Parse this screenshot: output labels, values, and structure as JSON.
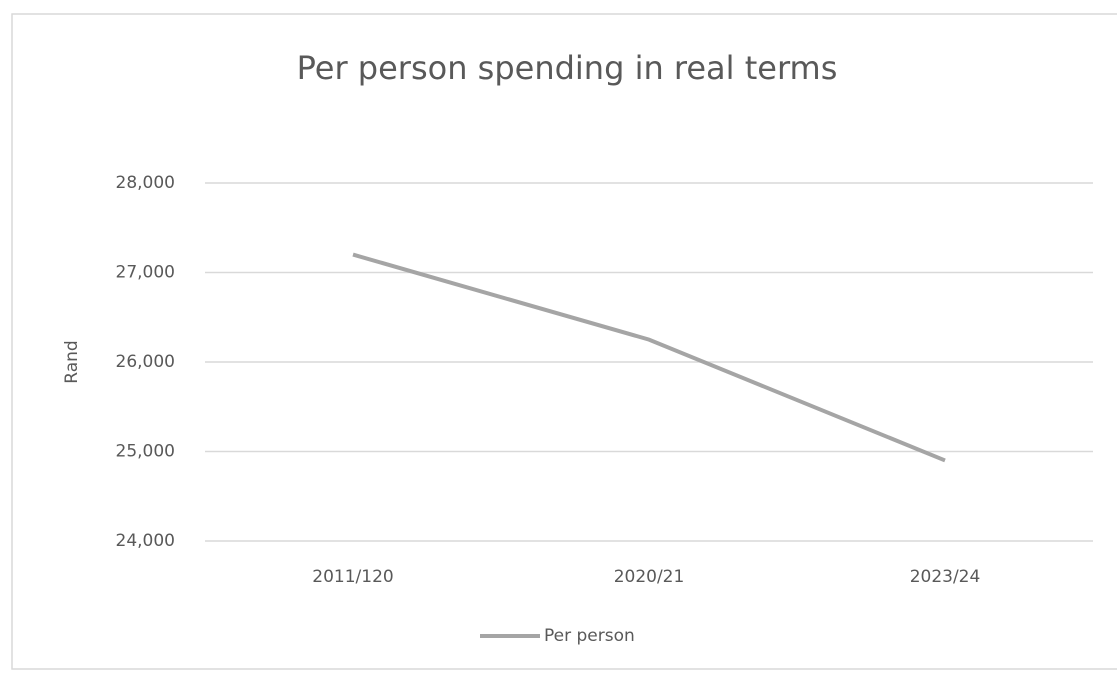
{
  "chart_data": {
    "type": "line",
    "title": "Per person spending in real terms",
    "y_label": "Rand",
    "categories": [
      "2011/120",
      "2020/21",
      "2023/24"
    ],
    "series": [
      {
        "name": "Per person",
        "color": "#a5a5a5",
        "values": [
          27200,
          26250,
          24900
        ]
      }
    ],
    "ylim": [
      24000,
      28000
    ],
    "yticks": [
      {
        "value": 24000,
        "label": "24,000"
      },
      {
        "value": 25000,
        "label": "25,000"
      },
      {
        "value": 26000,
        "label": "26,000"
      },
      {
        "value": 27000,
        "label": "27,000"
      },
      {
        "value": 28000,
        "label": "28,000"
      }
    ],
    "grid": true,
    "legend": "bottom"
  }
}
